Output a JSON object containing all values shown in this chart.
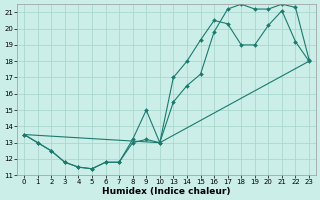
{
  "xlabel": "Humidex (Indice chaleur)",
  "ylabel": "",
  "bg_color": "#cceee8",
  "grid_color": "#aad8d0",
  "line_color": "#1a7a6e",
  "x_labels": [
    "0",
    "1",
    "2",
    "3",
    "4",
    "5",
    "6",
    "7",
    "8",
    "9",
    "10",
    "13",
    "14",
    "15",
    "16",
    "17",
    "18",
    "19",
    "20",
    "21",
    "22",
    "23"
  ],
  "line1_y": [
    13.5,
    13.0,
    12.5,
    11.8,
    11.5,
    11.4,
    11.8,
    11.8,
    13.2,
    15.0,
    13.0,
    17.0,
    18.0,
    19.3,
    20.5,
    20.3,
    19.0,
    19.0,
    20.2,
    21.1,
    19.2,
    18.0
  ],
  "line2_y": [
    13.5,
    13.0,
    12.5,
    11.8,
    11.5,
    11.4,
    11.8,
    11.8,
    13.0,
    13.2,
    13.0,
    15.5,
    16.5,
    17.2,
    19.8,
    21.2,
    21.5,
    21.2,
    21.2,
    21.5,
    21.3,
    18.1
  ],
  "line3_indices": [
    0,
    10,
    21
  ],
  "line3_y": [
    13.5,
    13.0,
    18.0
  ],
  "ylim": [
    11,
    21.5
  ],
  "yticks": [
    11,
    12,
    13,
    14,
    15,
    16,
    17,
    18,
    19,
    20,
    21
  ]
}
